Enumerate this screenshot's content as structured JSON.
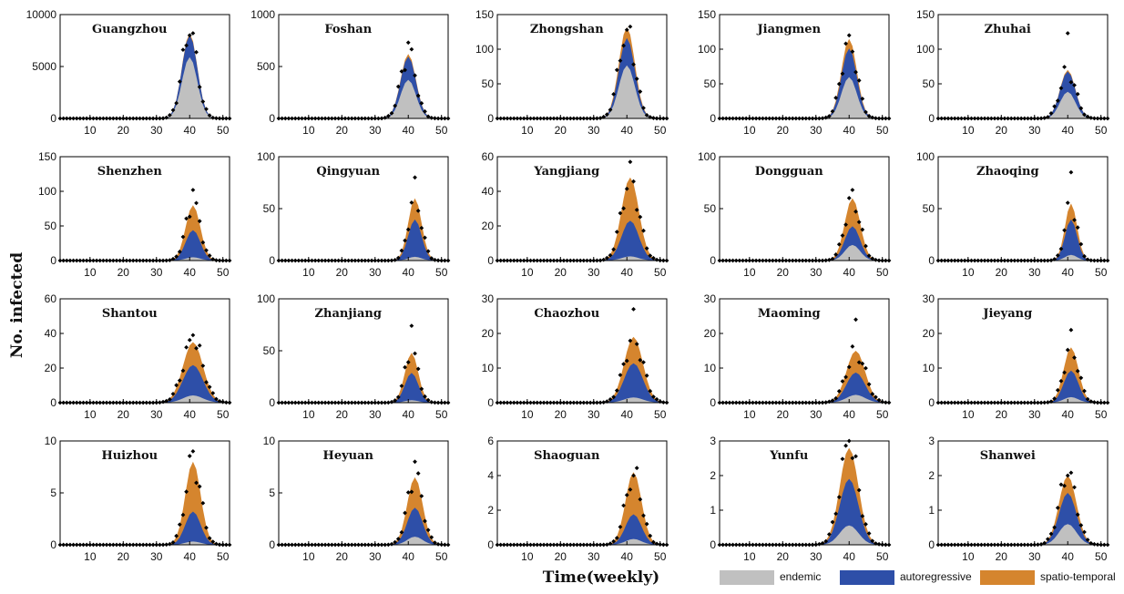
{
  "figure": {
    "ylabel": "No. infected",
    "xlabel": "Time(weekly)"
  },
  "legend": [
    {
      "label": "endemic",
      "color": "#c0c0c0"
    },
    {
      "label": "autoregressive",
      "color": "#2e4fa8"
    },
    {
      "label": "spatio-temporal",
      "color": "#d5852e"
    }
  ],
  "chart_data": [
    {
      "type": "area",
      "title": "Guangzhou",
      "ylim": [
        0,
        10000
      ],
      "yticks": [
        0,
        5000,
        10000
      ],
      "xlim": [
        1,
        52
      ],
      "xticks": [
        10,
        20,
        30,
        40,
        50
      ],
      "peak_week": 40,
      "width": 2.3,
      "peak_total": 8200,
      "endemic_frac": 0.72,
      "ar_frac": 0.98,
      "obs_peak": 8000
    },
    {
      "type": "area",
      "title": "Foshan",
      "ylim": [
        0,
        1000
      ],
      "yticks": [
        0,
        500,
        1000
      ],
      "xlim": [
        1,
        52
      ],
      "xticks": [
        10,
        20,
        30,
        40,
        50
      ],
      "peak_week": 40,
      "width": 2.3,
      "peak_total": 620,
      "endemic_frac": 0.6,
      "ar_frac": 0.96,
      "obs_peak": 730
    },
    {
      "type": "area",
      "title": "Zhongshan",
      "ylim": [
        0,
        150
      ],
      "yticks": [
        0,
        50,
        100,
        150
      ],
      "xlim": [
        1,
        52
      ],
      "xticks": [
        10,
        20,
        30,
        40,
        50
      ],
      "peak_week": 40,
      "width": 2.4,
      "peak_total": 132,
      "endemic_frac": 0.58,
      "ar_frac": 0.88,
      "obs_peak": 128
    },
    {
      "type": "area",
      "title": "Jiangmen",
      "ylim": [
        0,
        150
      ],
      "yticks": [
        0,
        50,
        100,
        150
      ],
      "xlim": [
        1,
        52
      ],
      "xticks": [
        10,
        20,
        30,
        40,
        50
      ],
      "peak_week": 40,
      "width": 2.3,
      "peak_total": 115,
      "endemic_frac": 0.52,
      "ar_frac": 0.88,
      "obs_peak": 120
    },
    {
      "type": "area",
      "title": "Zhuhai",
      "ylim": [
        0,
        150
      ],
      "yticks": [
        0,
        50,
        100,
        150
      ],
      "xlim": [
        1,
        52
      ],
      "xticks": [
        10,
        20,
        30,
        40,
        50
      ],
      "peak_week": 40,
      "width": 2.3,
      "peak_total": 70,
      "endemic_frac": 0.55,
      "ar_frac": 0.97,
      "obs_peak": 123
    },
    {
      "type": "area",
      "title": "Shenzhen",
      "ylim": [
        0,
        150
      ],
      "yticks": [
        0,
        50,
        100,
        150
      ],
      "xlim": [
        1,
        52
      ],
      "xticks": [
        10,
        20,
        30,
        40,
        50
      ],
      "peak_week": 41,
      "width": 2.2,
      "peak_total": 80,
      "endemic_frac": 0.06,
      "ar_frac": 0.55,
      "obs_peak": 102
    },
    {
      "type": "area",
      "title": "Qingyuan",
      "ylim": [
        0,
        100
      ],
      "yticks": [
        0,
        50,
        100
      ],
      "xlim": [
        1,
        52
      ],
      "xticks": [
        10,
        20,
        30,
        40,
        50
      ],
      "peak_week": 42,
      "width": 2.0,
      "peak_total": 60,
      "endemic_frac": 0.06,
      "ar_frac": 0.66,
      "obs_peak": 80
    },
    {
      "type": "area",
      "title": "Yangjiang",
      "ylim": [
        0,
        60
      ],
      "yticks": [
        0,
        20,
        40,
        60
      ],
      "xlim": [
        1,
        52
      ],
      "xticks": [
        10,
        20,
        30,
        40,
        50
      ],
      "peak_week": 41,
      "width": 2.6,
      "peak_total": 48,
      "endemic_frac": 0.05,
      "ar_frac": 0.48,
      "obs_peak": 57
    },
    {
      "type": "area",
      "title": "Dongguan",
      "ylim": [
        0,
        100
      ],
      "yticks": [
        0,
        50,
        100
      ],
      "xlim": [
        1,
        52
      ],
      "xticks": [
        10,
        20,
        30,
        40,
        50
      ],
      "peak_week": 41,
      "width": 2.3,
      "peak_total": 60,
      "endemic_frac": 0.25,
      "ar_frac": 0.55,
      "obs_peak": 68
    },
    {
      "type": "area",
      "title": "Zhaoqing",
      "ylim": [
        0,
        100
      ],
      "yticks": [
        0,
        50,
        100
      ],
      "xlim": [
        1,
        52
      ],
      "xticks": [
        10,
        20,
        30,
        40,
        50
      ],
      "peak_week": 41,
      "width": 1.8,
      "peak_total": 55,
      "endemic_frac": 0.1,
      "ar_frac": 0.72,
      "obs_peak": 85
    },
    {
      "type": "area",
      "title": "Shantou",
      "ylim": [
        0,
        60
      ],
      "yticks": [
        0,
        20,
        40,
        60
      ],
      "xlim": [
        1,
        52
      ],
      "xticks": [
        10,
        20,
        30,
        40,
        50
      ],
      "peak_week": 41,
      "width": 3.0,
      "peak_total": 35,
      "endemic_frac": 0.12,
      "ar_frac": 0.62,
      "obs_peak": 39
    },
    {
      "type": "area",
      "title": "Zhanjiang",
      "ylim": [
        0,
        100
      ],
      "yticks": [
        0,
        50,
        100
      ],
      "xlim": [
        1,
        52
      ],
      "xticks": [
        10,
        20,
        30,
        40,
        50
      ],
      "peak_week": 41,
      "width": 2.0,
      "peak_total": 48,
      "endemic_frac": 0.05,
      "ar_frac": 0.6,
      "obs_peak": 74
    },
    {
      "type": "area",
      "title": "Chaozhou",
      "ylim": [
        0,
        30
      ],
      "yticks": [
        0,
        10,
        20,
        30
      ],
      "xlim": [
        1,
        52
      ],
      "xticks": [
        10,
        20,
        30,
        40,
        50
      ],
      "peak_week": 42,
      "width": 2.8,
      "peak_total": 19,
      "endemic_frac": 0.08,
      "ar_frac": 0.6,
      "obs_peak": 27
    },
    {
      "type": "area",
      "title": "Maoming",
      "ylim": [
        0,
        30
      ],
      "yticks": [
        0,
        10,
        20,
        30
      ],
      "xlim": [
        1,
        52
      ],
      "xticks": [
        10,
        20,
        30,
        40,
        50
      ],
      "peak_week": 42,
      "width": 2.8,
      "peak_total": 15,
      "endemic_frac": 0.15,
      "ar_frac": 0.58,
      "obs_peak": 24
    },
    {
      "type": "area",
      "title": "Jieyang",
      "ylim": [
        0,
        30
      ],
      "yticks": [
        0,
        10,
        20,
        30
      ],
      "xlim": [
        1,
        52
      ],
      "xticks": [
        10,
        20,
        30,
        40,
        50
      ],
      "peak_week": 41,
      "width": 2.2,
      "peak_total": 16,
      "endemic_frac": 0.1,
      "ar_frac": 0.58,
      "obs_peak": 21
    },
    {
      "type": "area",
      "title": "Huizhou",
      "ylim": [
        0,
        10
      ],
      "yticks": [
        0,
        5,
        10
      ],
      "xlim": [
        1,
        52
      ],
      "xticks": [
        10,
        20,
        30,
        40,
        50
      ],
      "peak_week": 41,
      "width": 2.3,
      "peak_total": 8,
      "endemic_frac": 0.04,
      "ar_frac": 0.4,
      "obs_peak": 9
    },
    {
      "type": "area",
      "title": "Heyuan",
      "ylim": [
        0,
        10
      ],
      "yticks": [
        0,
        5,
        10
      ],
      "xlim": [
        1,
        52
      ],
      "xticks": [
        10,
        20,
        30,
        40,
        50
      ],
      "peak_week": 42,
      "width": 2.3,
      "peak_total": 6.5,
      "endemic_frac": 0.12,
      "ar_frac": 0.55,
      "obs_peak": 8
    },
    {
      "type": "area",
      "title": "Shaoguan",
      "ylim": [
        0,
        6
      ],
      "yticks": [
        0,
        2,
        4,
        6
      ],
      "xlim": [
        1,
        52
      ],
      "xticks": [
        10,
        20,
        30,
        40,
        50
      ],
      "peak_week": 42,
      "width": 2.4,
      "peak_total": 4.2,
      "endemic_frac": 0.08,
      "ar_frac": 0.42,
      "obs_peak": 4
    },
    {
      "type": "area",
      "title": "Yunfu",
      "ylim": [
        0,
        3
      ],
      "yticks": [
        0,
        1,
        2,
        3
      ],
      "xlim": [
        1,
        52
      ],
      "xticks": [
        10,
        20,
        30,
        40,
        50
      ],
      "peak_week": 40,
      "width": 2.8,
      "peak_total": 2.8,
      "endemic_frac": 0.2,
      "ar_frac": 0.68,
      "obs_peak": 3
    },
    {
      "type": "area",
      "title": "Shanwei",
      "ylim": [
        0,
        3
      ],
      "yticks": [
        0,
        1,
        2,
        3
      ],
      "xlim": [
        1,
        52
      ],
      "xticks": [
        10,
        20,
        30,
        40,
        50
      ],
      "peak_week": 40,
      "width": 2.6,
      "peak_total": 2.0,
      "endemic_frac": 0.3,
      "ar_frac": 0.75,
      "obs_peak": 2
    }
  ]
}
